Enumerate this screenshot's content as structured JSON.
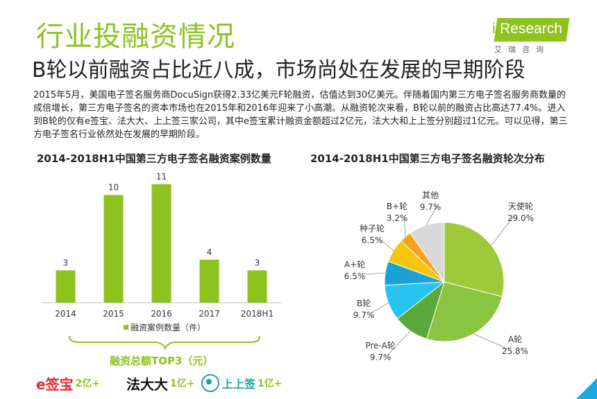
{
  "header": {
    "title": "行业投融资情况",
    "subtitle": "B轮以前融资占比近八成，市场尚处在发展的早期阶段",
    "logo_text": "Research",
    "logo_i": "i",
    "logo_sub": "艾瑞咨询"
  },
  "paragraph": "2015年5月，美国电子签名服务商DocuSign获得2.33亿美元F轮融资，估值达到30亿美元。伴随着国内第三方电子签名服务商数量的成倍增长，第三方电子签名的资本市场也在2015年和2016年迎来了小高潮。从融资轮次来看，B轮以前的融资占比高达77.4%。进入到B轮的仅有e签宝、法大大、上上签三家公司，其中e签宝累计融资金额超过2亿元，法大大和上上签分别超过1亿元。可以见得，第三方电子签名行业依然处在发展的早期阶段。",
  "colors": {
    "accent": "#8dc21f",
    "bar": "#8dc21f"
  },
  "chart_data": [
    {
      "type": "bar",
      "title": "2014-2018H1中国第三方电子签名融资案例数量",
      "categories": [
        "2014",
        "2015",
        "2016",
        "2017",
        "2018H1"
      ],
      "values": [
        3,
        10,
        11,
        4,
        3
      ],
      "legend": "融资案例数量（件）",
      "ylim": [
        0,
        11
      ]
    },
    {
      "type": "pie",
      "title": "2014-2018H1中国第三方电子签名融资轮次分布",
      "slices": [
        {
          "label": "天使轮",
          "value": 29.0,
          "pct": "29.0%",
          "color": "#9dc93a"
        },
        {
          "label": "A轮",
          "value": 25.8,
          "pct": "25.8%",
          "color": "#8ac440"
        },
        {
          "label": "Pre-A轮",
          "value": 9.7,
          "pct": "9.7%",
          "color": "#5aa83a"
        },
        {
          "label": "B轮",
          "value": 9.7,
          "pct": "9.7%",
          "color": "#26c4ef"
        },
        {
          "label": "A+轮",
          "value": 6.5,
          "pct": "6.5%",
          "color": "#1ba1d8"
        },
        {
          "label": "种子轮",
          "value": 6.5,
          "pct": "6.5%",
          "color": "#f6c60a"
        },
        {
          "label": "B+轮",
          "value": 3.2,
          "pct": "3.2%",
          "color": "#f7a21b"
        },
        {
          "label": "其他",
          "value": 9.7,
          "pct": "9.7%",
          "color": "#d8d8d8"
        }
      ]
    }
  ],
  "funding": {
    "title": "融资总额TOP3（元）",
    "companies": [
      {
        "name": "e签宝",
        "amount": "2亿+",
        "color": "#e4262b"
      },
      {
        "name": "法大大",
        "amount": "1亿+",
        "color": "#111111"
      },
      {
        "name": "上上签",
        "amount": "1亿+",
        "color": "#1aa3a3"
      }
    ]
  }
}
